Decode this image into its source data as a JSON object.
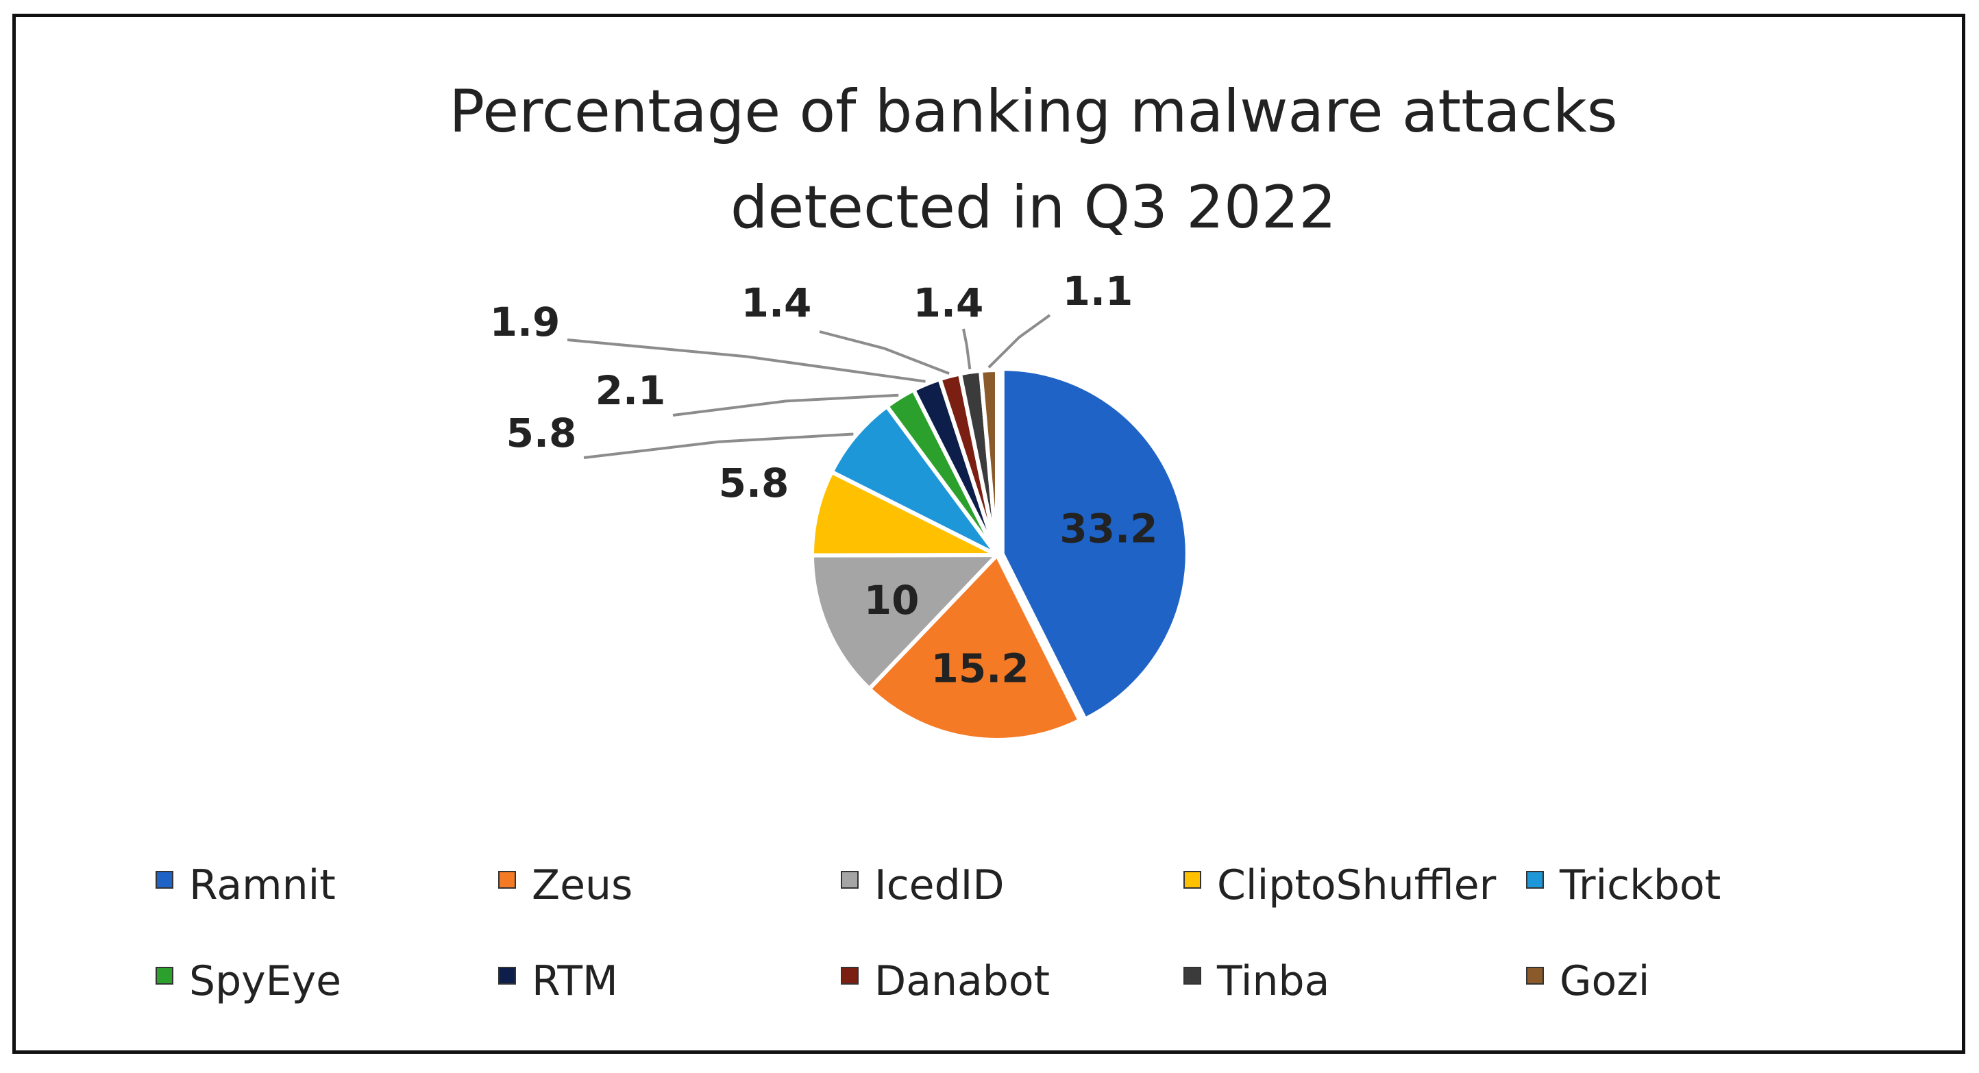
{
  "chart_data": {
    "type": "pie",
    "title_lines": [
      "Percentage of banking malware attacks",
      "detected in Q3 2022"
    ],
    "slices": [
      {
        "name": "Ramnit",
        "value": 33.2,
        "color": "#1F63C6"
      },
      {
        "name": "Zeus",
        "value": 15.2,
        "color": "#F47A26"
      },
      {
        "name": "IcedID",
        "value": 10,
        "color": "#A5A5A5"
      },
      {
        "name": "CliptoShuffler",
        "value": 5.8,
        "color": "#FFC000"
      },
      {
        "name": "Trickbot",
        "value": 5.8,
        "color": "#1E97D8"
      },
      {
        "name": "SpyEye",
        "value": 2.1,
        "color": "#2CA02C"
      },
      {
        "name": "RTM",
        "value": 1.9,
        "color": "#0D1E4A"
      },
      {
        "name": "Danabot",
        "value": 1.4,
        "color": "#7A1F12"
      },
      {
        "name": "Tinba",
        "value": 1.4,
        "color": "#3B3B3B"
      },
      {
        "name": "Gozi",
        "value": 1.1,
        "color": "#8B5A2B"
      }
    ],
    "legend_position": "bottom"
  }
}
